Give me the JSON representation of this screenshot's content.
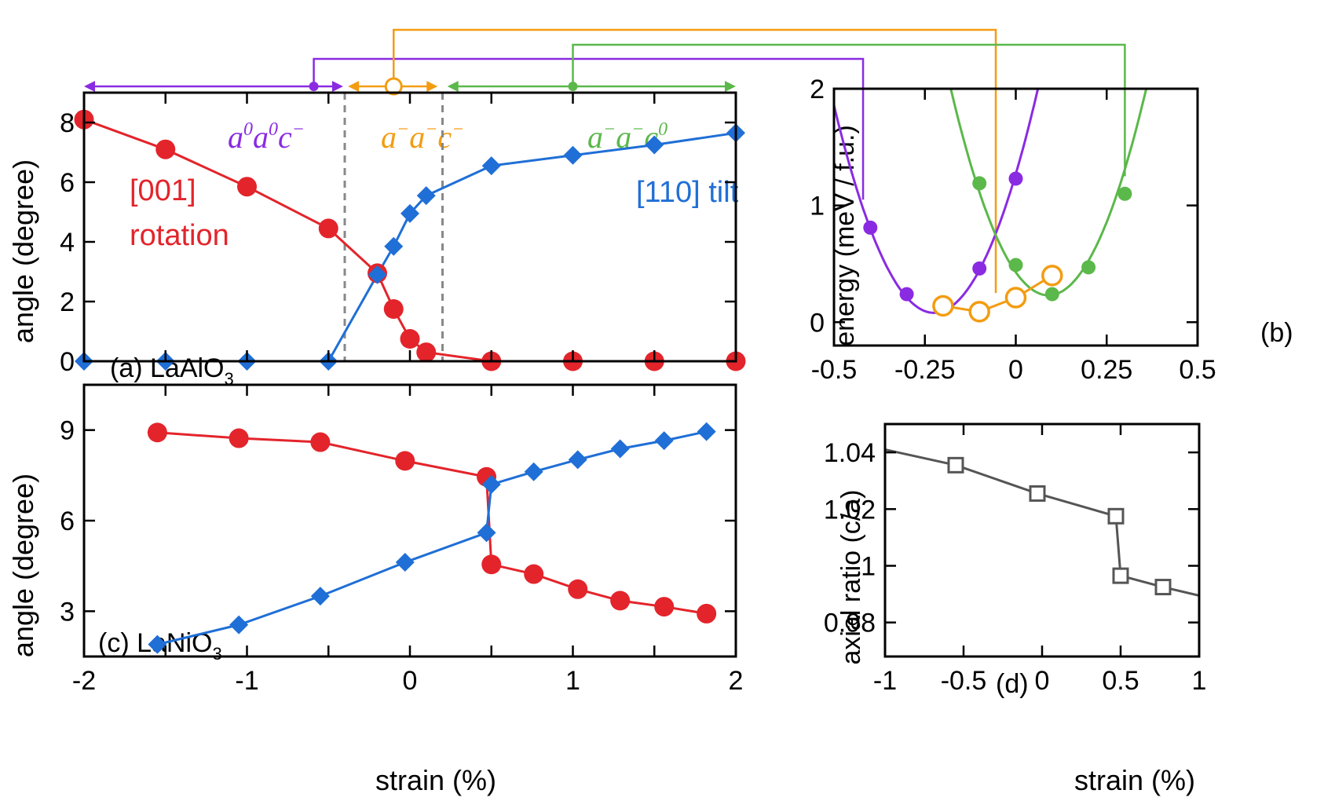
{
  "colors": {
    "purple": "#8a2be2",
    "orange": "#f39c12",
    "green": "#5bb84a",
    "red": "#e3242b",
    "blue": "#1f6fd6",
    "gray": "#555555",
    "dash": "#888888"
  },
  "chart_data": [
    {
      "id": "a",
      "type": "line",
      "panel_label": "(a) LaAlO",
      "panel_label_sub": "3",
      "xlabel": "",
      "ylabel": "angle (degree)",
      "xlim": [
        -2,
        2
      ],
      "ylim": [
        0,
        9
      ],
      "yticks": [
        0,
        2,
        4,
        6,
        8
      ],
      "phase_boundaries": [
        -0.4,
        0.2
      ],
      "phases": [
        {
          "prefix": "a",
          "sup1": "0",
          "mid": "a",
          "sup2": "0",
          "last": "c",
          "sup3": "−",
          "color": "purple"
        },
        {
          "prefix": "a",
          "sup1": "−",
          "mid": "a",
          "sup2": "−",
          "last": "c",
          "sup3": "−",
          "color": "orange"
        },
        {
          "prefix": "a",
          "sup1": "−",
          "mid": "a",
          "sup2": "−",
          "last": "c",
          "sup3": "0",
          "color": "green"
        }
      ],
      "series": [
        {
          "name": "[001] rotation",
          "label_lines": [
            "[001]",
            "rotation"
          ],
          "color": "red",
          "marker": "circle",
          "x": [
            -2,
            -1.5,
            -1,
            -0.5,
            -0.2,
            -0.1,
            0,
            0.1,
            0.5,
            1,
            1.5,
            2
          ],
          "y": [
            8.1,
            7.1,
            5.85,
            4.45,
            2.95,
            1.75,
            0.75,
            0.3,
            0,
            0,
            0,
            0
          ]
        },
        {
          "name": "[110] tilt",
          "label_lines": [
            "[110] tilt"
          ],
          "color": "blue",
          "marker": "diamond",
          "x": [
            -2,
            -1.5,
            -1,
            -0.5,
            -0.2,
            -0.1,
            0,
            0.1,
            0.5,
            1,
            1.5,
            2
          ],
          "y": [
            0,
            0,
            0,
            0,
            2.9,
            3.85,
            4.95,
            5.55,
            6.55,
            6.9,
            7.25,
            7.65
          ]
        }
      ]
    },
    {
      "id": "b",
      "type": "scatter",
      "panel_label": "(b)",
      "ylabel": "energy (meV / f.u.)",
      "xlim": [
        -0.5,
        0.5
      ],
      "ylim": [
        -0.2,
        2
      ],
      "xticks": [
        -0.5,
        -0.25,
        0,
        0.25,
        0.5
      ],
      "xticklabels": [
        "-0.5",
        "-0.25",
        "0",
        "0.25",
        "0.5"
      ],
      "yticks": [
        0,
        1,
        2
      ],
      "series": [
        {
          "name": "a0a0c-",
          "color": "purple",
          "marker": "dot",
          "x": [
            -0.4,
            -0.3,
            -0.2,
            -0.1,
            0
          ],
          "y": [
            0.81,
            0.24,
            0.13,
            0.46,
            1.23
          ],
          "fit": {
            "x0": -0.225,
            "a": 23.5,
            "c": 0.08
          }
        },
        {
          "name": "a-a-c0",
          "color": "green",
          "marker": "dot",
          "x": [
            -0.1,
            0,
            0.1,
            0.2,
            0.3
          ],
          "y": [
            1.19,
            0.49,
            0.24,
            0.47,
            1.1
          ],
          "fit": {
            "x0": 0.09,
            "a": 24.5,
            "c": 0.23
          }
        },
        {
          "name": "a-a-c-",
          "color": "orange",
          "marker": "open-circle",
          "x": [
            -0.2,
            -0.1,
            0,
            0.1
          ],
          "y": [
            0.14,
            0.09,
            0.21,
            0.4
          ]
        }
      ]
    },
    {
      "id": "c",
      "type": "line",
      "panel_label": "(c) LaNiO",
      "panel_label_sub": "3",
      "xlabel": "strain (%)",
      "ylabel": "angle (degree)",
      "xlim": [
        -2,
        2
      ],
      "ylim": [
        1.5,
        10.5
      ],
      "xticks": [
        -2,
        -1,
        0,
        1,
        2
      ],
      "yticks": [
        3,
        6,
        9
      ],
      "series": [
        {
          "name": "[001] rotation",
          "color": "red",
          "marker": "circle",
          "x": [
            -1.55,
            -1.05,
            -0.55,
            -0.03,
            0.47,
            0.5,
            0.76,
            1.03,
            1.29,
            1.56,
            1.82
          ],
          "y": [
            8.92,
            8.73,
            8.6,
            7.98,
            7.45,
            4.55,
            4.23,
            3.73,
            3.35,
            3.15,
            2.92
          ]
        },
        {
          "name": "[110] tilt",
          "color": "blue",
          "marker": "diamond",
          "x": [
            -1.55,
            -1.05,
            -0.55,
            -0.03,
            0.47,
            0.5,
            0.76,
            1.03,
            1.29,
            1.56,
            1.82
          ],
          "y": [
            1.9,
            2.55,
            3.5,
            4.62,
            5.6,
            7.2,
            7.62,
            8.02,
            8.38,
            8.65,
            8.95
          ]
        }
      ]
    },
    {
      "id": "d",
      "type": "line",
      "panel_label": "(d)",
      "xlabel": "strain (%)",
      "ylabel": "axial ratio (c/a)",
      "xlim": [
        -1,
        1
      ],
      "ylim": [
        0.968,
        1.05
      ],
      "xticks": [
        -1,
        -0.5,
        0,
        0.5,
        1
      ],
      "xticklabels": [
        "-1",
        "-0.5",
        "0",
        "0.5",
        "1"
      ],
      "yticks": [
        0.98,
        1.0,
        1.02,
        1.04
      ],
      "yticklabels": [
        "0.98",
        "1",
        "1.02",
        "1.04"
      ],
      "series": [
        {
          "name": "axial ratio",
          "color": "gray",
          "marker": "square",
          "x": [
            -1.0,
            -0.55,
            -0.03,
            0.47,
            0.5,
            0.77,
            1.0
          ],
          "y": [
            1.041,
            1.0355,
            1.0255,
            1.0175,
            0.9965,
            0.9925,
            0.9895
          ],
          "marker_mask": [
            false,
            true,
            true,
            true,
            true,
            true,
            false
          ]
        }
      ]
    }
  ]
}
